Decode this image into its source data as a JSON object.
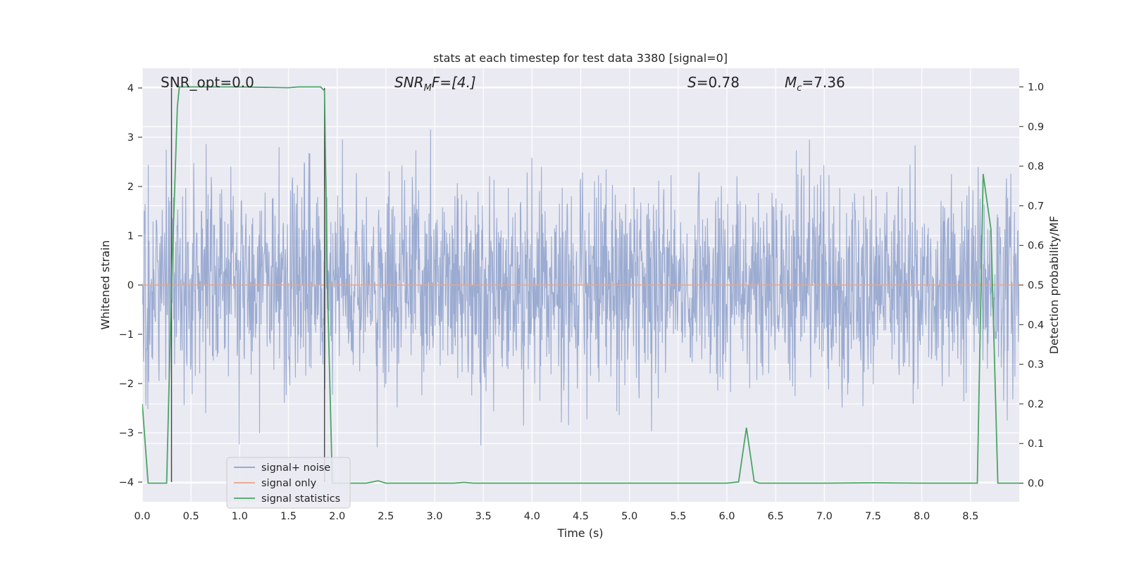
{
  "chart_data": {
    "type": "line",
    "title": "stats at each timestep for test data 3380 [signal=0]",
    "xlabel": "Time (s)",
    "ylabel_left": "Whitened strain",
    "ylabel_right": "Detection probability/MF",
    "xlim": [
      0.0,
      9.0
    ],
    "ylim_left": [
      -4.4,
      4.4
    ],
    "ylim_right": [
      -0.047,
      1.047
    ],
    "xticks": [
      "0.0",
      "0.5",
      "1.0",
      "1.5",
      "2.0",
      "2.5",
      "3.0",
      "3.5",
      "4.0",
      "4.5",
      "5.0",
      "5.5",
      "6.0",
      "6.5",
      "7.0",
      "7.5",
      "8.0",
      "8.5"
    ],
    "xtick_values": [
      0.0,
      0.5,
      1.0,
      1.5,
      2.0,
      2.5,
      3.0,
      3.5,
      4.0,
      4.5,
      5.0,
      5.5,
      6.0,
      6.5,
      7.0,
      7.5,
      8.0,
      8.5
    ],
    "yticks_left": [
      "−4",
      "−3",
      "−2",
      "−1",
      "0",
      "1",
      "2",
      "3",
      "4"
    ],
    "ytick_values_left": [
      -4,
      -3,
      -2,
      -1,
      0,
      1,
      2,
      3,
      4
    ],
    "yticks_right": [
      "0.0",
      "0.1",
      "0.2",
      "0.3",
      "0.4",
      "0.5",
      "0.6",
      "0.7",
      "0.8",
      "0.9",
      "1.0"
    ],
    "ytick_values_right": [
      0.0,
      0.1,
      0.2,
      0.3,
      0.4,
      0.5,
      0.6,
      0.7,
      0.8,
      0.9,
      1.0
    ],
    "grid": true,
    "annotations": {
      "snr_opt": "SNR_opt=0.0",
      "snr_mf_sym": "SNR",
      "snr_mf_sub": "M",
      "snr_mf_rest": "F=[4.]",
      "s_sym": "S",
      "s_rest": "=0.78",
      "mc_sym": "M",
      "mc_sub": "c",
      "mc_rest": "=7.36"
    },
    "vertical_markers_x": [
      0.3,
      1.87
    ],
    "legend": {
      "placement": "lower-left",
      "entries": [
        "signal+ noise",
        "signal only",
        "signal statistics"
      ]
    },
    "series": [
      {
        "name": "signal+ noise",
        "color": "#8da0cb",
        "axis": "left",
        "description_values": "whitened noise, approx ±2 typical, peaks to ±4"
      },
      {
        "name": "signal only",
        "color": "#e8a589",
        "axis": "left",
        "x": [
          0.0,
          9.0
        ],
        "y": [
          0.0,
          0.0
        ]
      },
      {
        "name": "signal statistics",
        "color": "#4aa564",
        "axis": "right",
        "x": [
          0.0,
          0.06,
          0.25,
          0.3,
          0.36,
          0.38,
          0.6,
          1.0,
          1.5,
          1.6,
          1.8,
          1.83,
          1.87,
          1.9,
          1.95,
          2.1,
          2.3,
          2.42,
          2.5,
          2.6,
          3.0,
          3.2,
          3.3,
          3.4,
          4.0,
          5.0,
          6.0,
          6.12,
          6.2,
          6.28,
          6.33,
          7.0,
          7.5,
          8.0,
          8.57,
          8.63,
          8.71,
          8.78,
          9.0
        ],
        "y": [
          0.2,
          0.0,
          0.0,
          0.5,
          0.95,
          1.0,
          1.0,
          1.0,
          0.998,
          1.0,
          1.0,
          1.0,
          0.99,
          0.5,
          0.0,
          0.0,
          0.0,
          0.006,
          0.0,
          0.0,
          0.0,
          0.0,
          0.002,
          0.0,
          0.0,
          0.0,
          0.0,
          0.003,
          0.14,
          0.005,
          0.0,
          0.0,
          0.001,
          0.0,
          0.0,
          0.78,
          0.64,
          0.0,
          0.0
        ]
      }
    ]
  }
}
